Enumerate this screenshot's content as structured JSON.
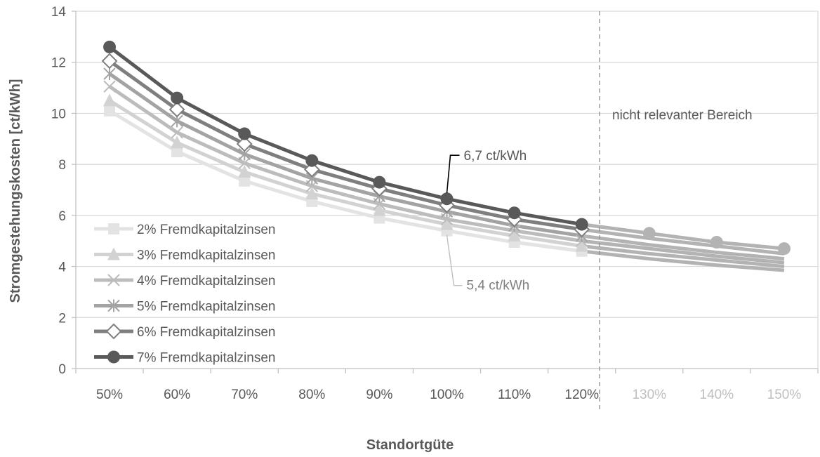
{
  "chart_data": {
    "type": "line",
    "title": "",
    "xlabel": "Standortgüte",
    "ylabel": "Stromgestehungskosten [ct/kWh]",
    "categories": [
      "50%",
      "60%",
      "70%",
      "80%",
      "90%",
      "100%",
      "110%",
      "120%",
      "130%",
      "140%",
      "150%"
    ],
    "ylim": [
      0,
      14
    ],
    "yticks": [
      0,
      2,
      4,
      6,
      8,
      10,
      12,
      14
    ],
    "grid": true,
    "legend_position": "bottom-left",
    "series": [
      {
        "name": "2% Fremdkapitalzinsen",
        "marker": "square",
        "color": "#e3e3e3",
        "values": [
          10.1,
          8.5,
          7.35,
          6.55,
          5.9,
          5.4,
          4.95,
          4.6,
          4.3,
          4.05,
          3.85
        ]
      },
      {
        "name": "3% Fremdkapitalzinsen",
        "marker": "triangle",
        "color": "#d2d2d2",
        "values": [
          10.5,
          8.85,
          7.7,
          6.85,
          6.2,
          5.65,
          5.2,
          4.8,
          4.5,
          4.25,
          4.0
        ]
      },
      {
        "name": "4% Fremdkapitalzinsen",
        "marker": "x",
        "color": "#bcbcbc",
        "values": [
          11.05,
          9.25,
          8.05,
          7.15,
          6.45,
          5.85,
          5.4,
          5.0,
          4.7,
          4.4,
          4.15
        ]
      },
      {
        "name": "5% Fremdkapitalzinsen",
        "marker": "star",
        "color": "#a3a3a3",
        "values": [
          11.55,
          9.7,
          8.4,
          7.45,
          6.75,
          6.15,
          5.6,
          5.2,
          4.85,
          4.55,
          4.3
        ]
      },
      {
        "name": "6% Fremdkapitalzinsen",
        "marker": "diamond",
        "color": "#7f7f7f",
        "values": [
          12.05,
          10.15,
          8.8,
          7.8,
          7.05,
          6.4,
          5.85,
          5.45,
          5.1,
          4.8,
          4.5
        ]
      },
      {
        "name": "7% Fremdkapitalzinsen",
        "marker": "circle",
        "color": "#595959",
        "values": [
          12.6,
          10.6,
          9.2,
          8.15,
          7.3,
          6.65,
          6.1,
          5.65,
          5.3,
          4.95,
          4.7
        ]
      }
    ],
    "relevant_region_label": "nicht relevanter Bereich",
    "annotations": [
      {
        "text": "6,7 ct/kWh",
        "category": "100%",
        "value": 6.65,
        "color": "#595959"
      },
      {
        "text": "5,4 ct/kWh",
        "category": "100%",
        "value": 5.4,
        "color": "#7f7f7f"
      }
    ],
    "beyond_relevant_color": "#b3b3b3",
    "dim_tick_color": "#bfbfbf"
  }
}
